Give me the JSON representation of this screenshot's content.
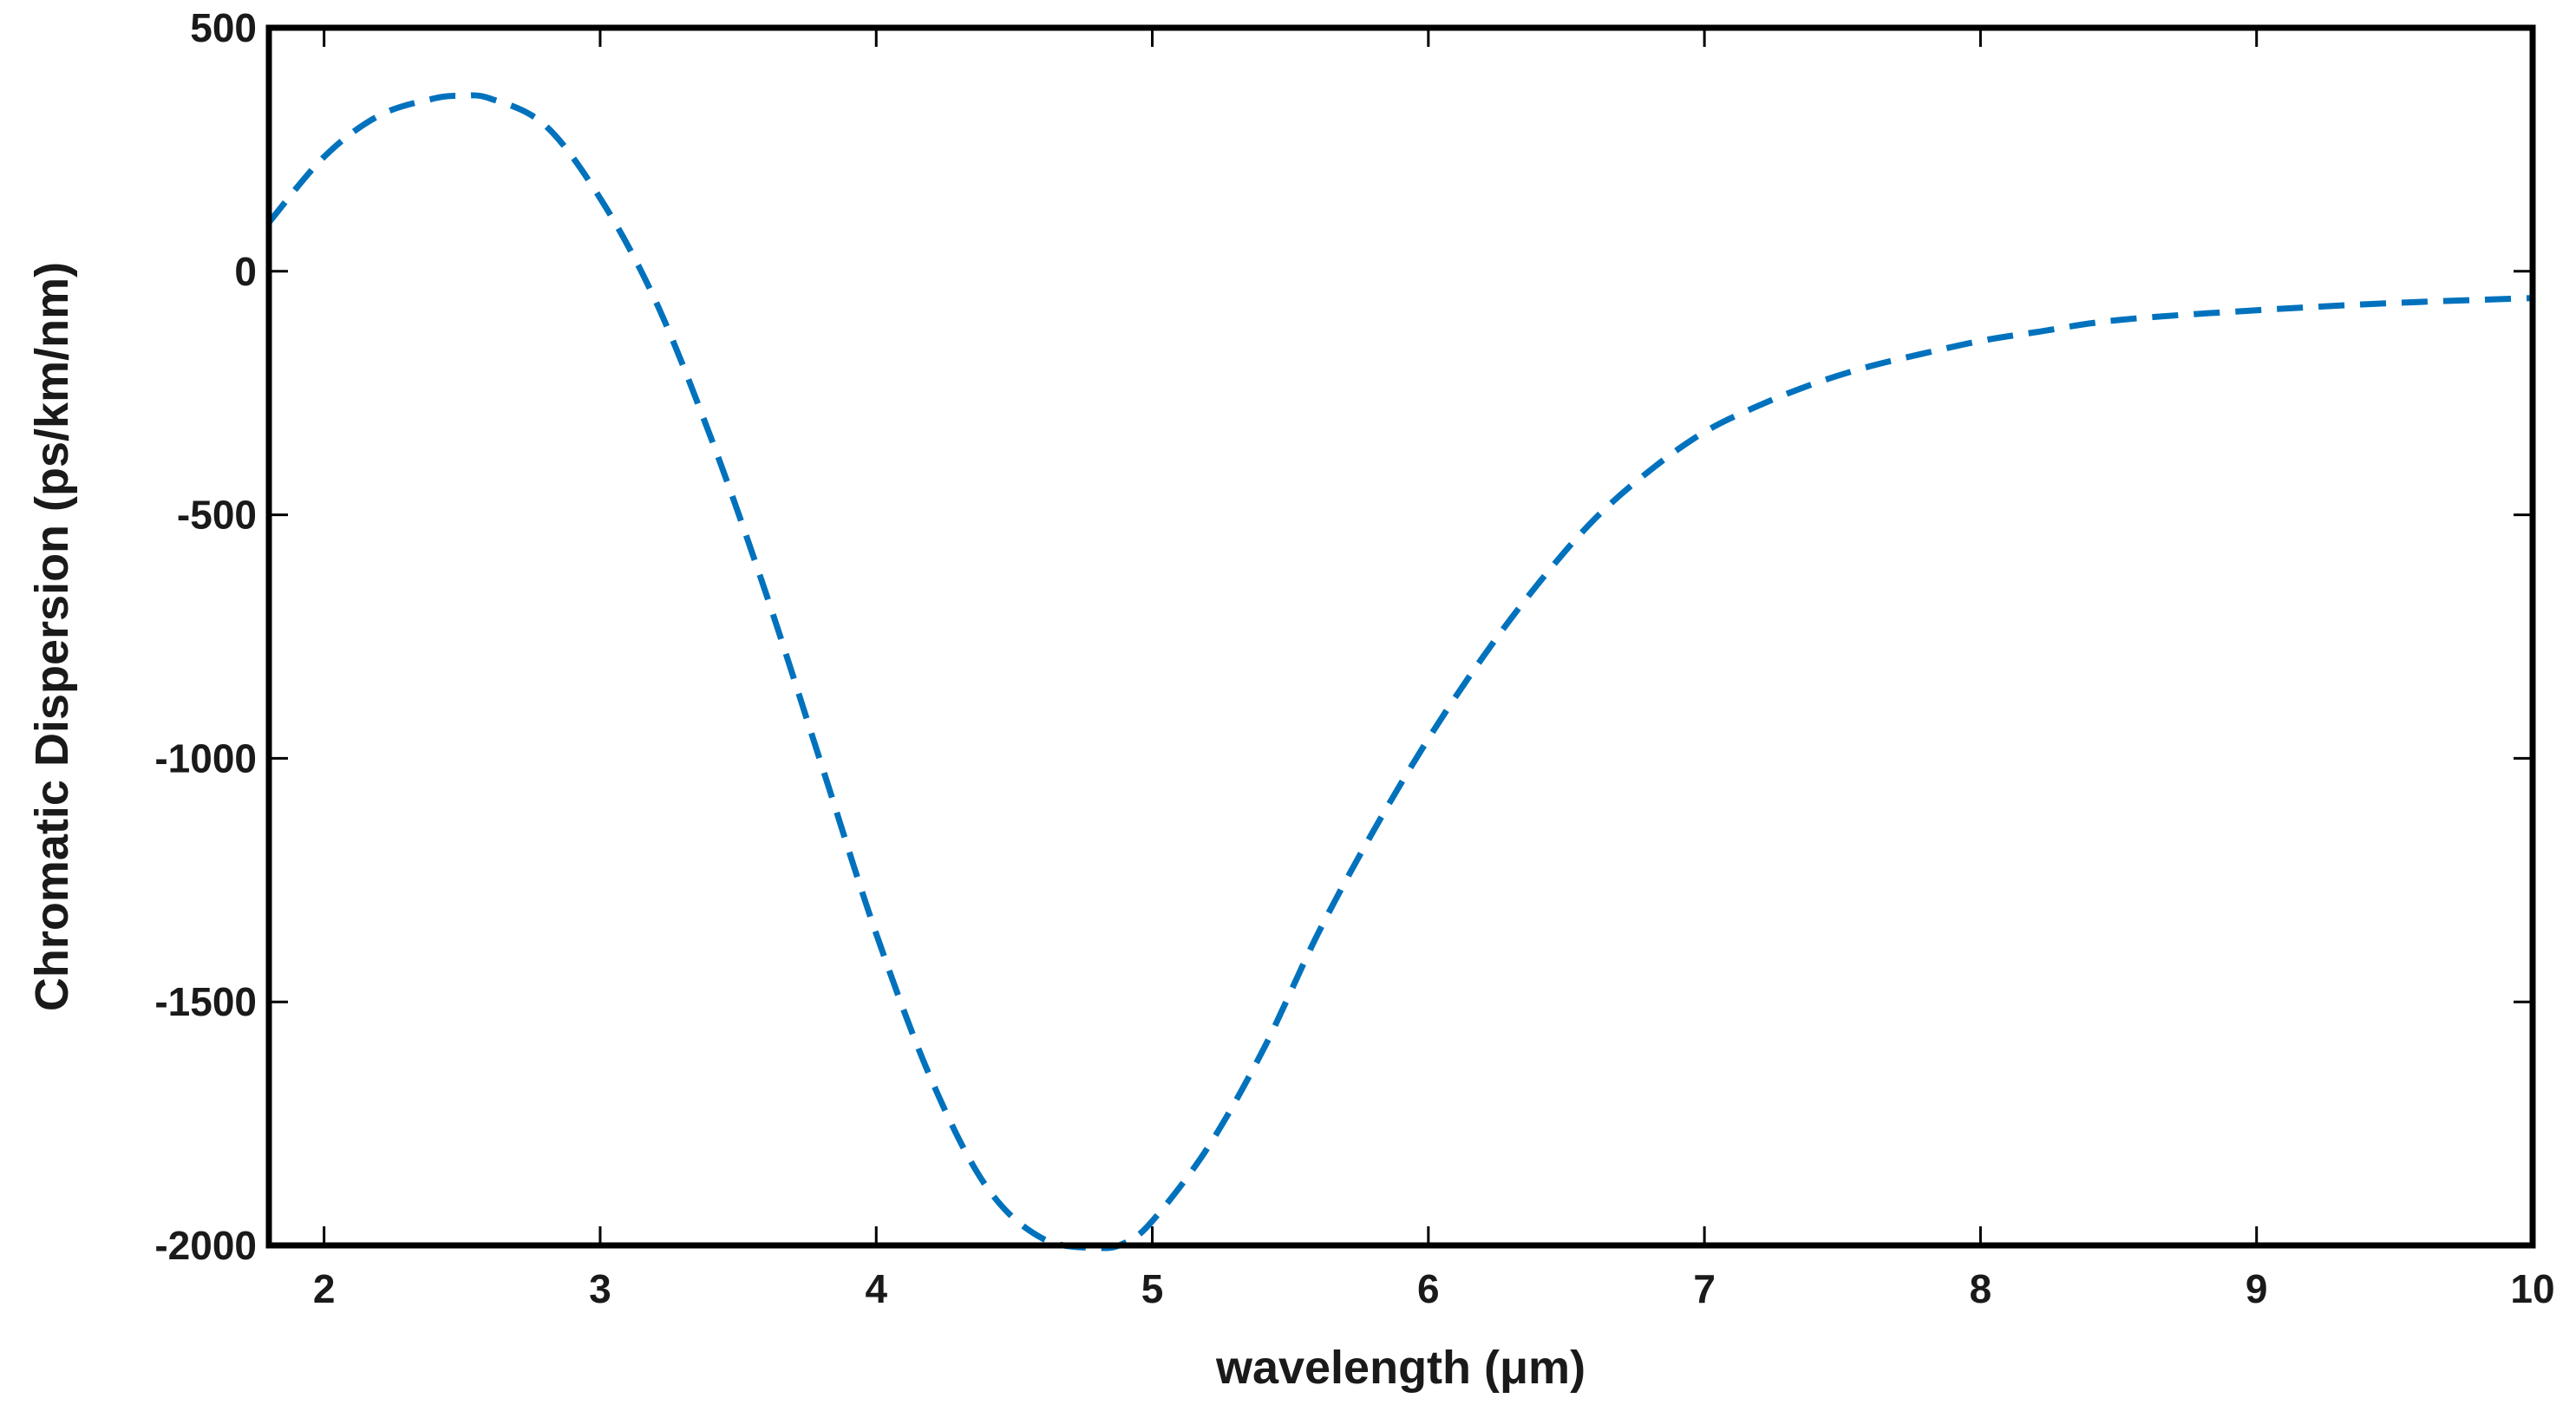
{
  "chart_data": {
    "type": "line",
    "title": "",
    "xlabel": "wavelength (μm)",
    "ylabel": "Chromatic Dispersion (ps/km/nm)",
    "xlim": [
      1.8,
      10
    ],
    "ylim": [
      -2000,
      500
    ],
    "xticks": [
      2,
      3,
      4,
      5,
      6,
      7,
      8,
      9,
      10
    ],
    "yticks": [
      500,
      0,
      -500,
      -1000,
      -1500,
      -2000
    ],
    "grid": false,
    "legend": "none",
    "series": [
      {
        "color": "#0072BD",
        "line_style": "dashed",
        "x": [
          1.8,
          2.0,
          2.2,
          2.4,
          2.5,
          2.6,
          2.8,
          3.0,
          3.2,
          3.4,
          3.6,
          3.8,
          4.0,
          4.2,
          4.4,
          4.6,
          4.8,
          4.9,
          5.0,
          5.2,
          5.4,
          5.6,
          5.8,
          6.0,
          6.2,
          6.4,
          6.6,
          6.8,
          7.0,
          7.2,
          7.4,
          7.6,
          7.8,
          8.0,
          8.2,
          8.5,
          9.0,
          9.5,
          10.0
        ],
        "y": [
          100,
          235,
          320,
          355,
          360,
          355,
          300,
          150,
          -60,
          -340,
          -660,
          -1010,
          -1360,
          -1660,
          -1880,
          -1985,
          -2005,
          -1995,
          -1950,
          -1800,
          -1600,
          -1360,
          -1150,
          -960,
          -790,
          -640,
          -510,
          -410,
          -330,
          -275,
          -230,
          -195,
          -168,
          -143,
          -125,
          -100,
          -80,
          -65,
          -55
        ]
      }
    ]
  }
}
